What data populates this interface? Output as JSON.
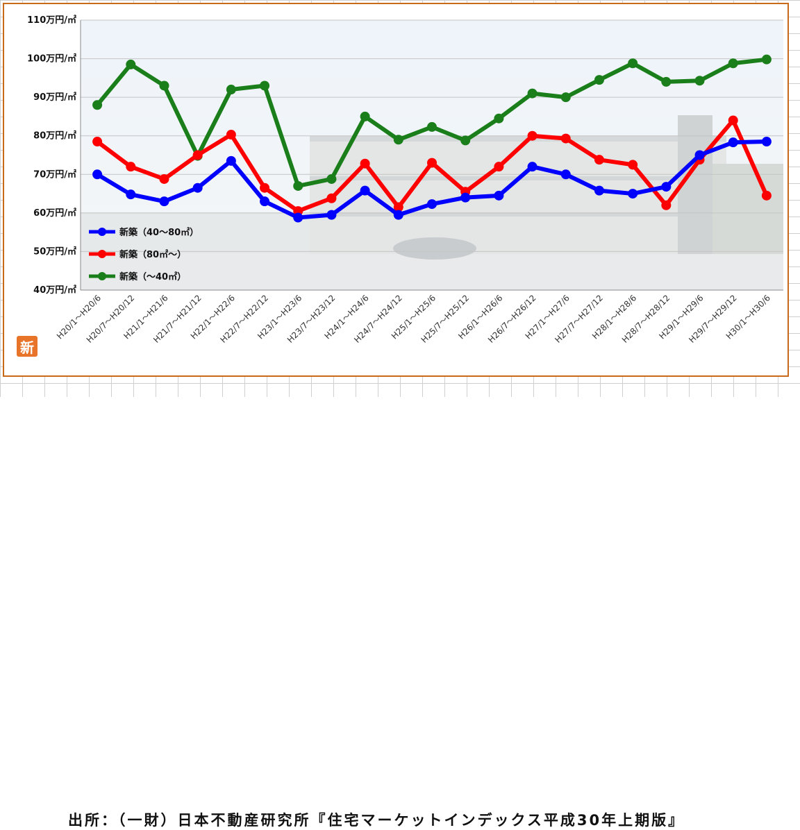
{
  "source_text": "出所：（一財）日本不動産研究所『住宅マーケットインデックス平成30年上期版』",
  "badge_text": "新",
  "chart_data": {
    "type": "line",
    "y_tick_labels": [
      "40万円/㎡",
      "50万円/㎡",
      "60万円/㎡",
      "70万円/㎡",
      "80万円/㎡",
      "90万円/㎡",
      "100万円/㎡",
      "110万円/㎡"
    ],
    "y_ticks": [
      40,
      50,
      60,
      70,
      80,
      90,
      100,
      110
    ],
    "ylim": [
      40,
      110
    ],
    "grid": true,
    "legend_position": "lower-left",
    "categories": [
      "H20/1～H20/6",
      "H20/7～H20/12",
      "H21/1～H21/6",
      "H21/7～H21/12",
      "H22/1～H22/6",
      "H22/7～H22/12",
      "H23/1～H23/6",
      "H23/7～H23/12",
      "H24/1～H24/6",
      "H24/7～H24/12",
      "H25/1～H25/6",
      "H25/7～H25/12",
      "H26/1～H26/6",
      "H26/7～H26/12",
      "H27/1～H27/6",
      "H27/7～H27/12",
      "H28/1～H28/6",
      "H28/7～H28/12",
      "H29/1～H29/6",
      "H29/7～H29/12",
      "H30/1～H30/6"
    ],
    "series": [
      {
        "name": "新築（40～80㎡）",
        "color": "#0000ff",
        "values": [
          70,
          64.8,
          63,
          66.5,
          73.5,
          63,
          58.8,
          59.5,
          65.8,
          59.5,
          62.3,
          64,
          64.5,
          72,
          70,
          65.8,
          65,
          66.8,
          75,
          78.3,
          78.5
        ]
      },
      {
        "name": "新築（80㎡～）",
        "color": "#ff0000",
        "values": [
          78.5,
          72,
          68.8,
          75,
          80.3,
          66.5,
          60.5,
          63.8,
          72.8,
          61.5,
          73,
          65.5,
          72,
          80,
          79.3,
          73.8,
          72.5,
          62,
          73.8,
          84,
          64.5
        ]
      },
      {
        "name": "新築（～40㎡）",
        "color": "#1a7f1a",
        "values": [
          88,
          98.5,
          93,
          74.8,
          92,
          93,
          67,
          68.8,
          85,
          79,
          82.3,
          78.8,
          84.5,
          91,
          90,
          94.5,
          98.8,
          94,
          94.3,
          98.8,
          99.8
        ]
      }
    ]
  }
}
